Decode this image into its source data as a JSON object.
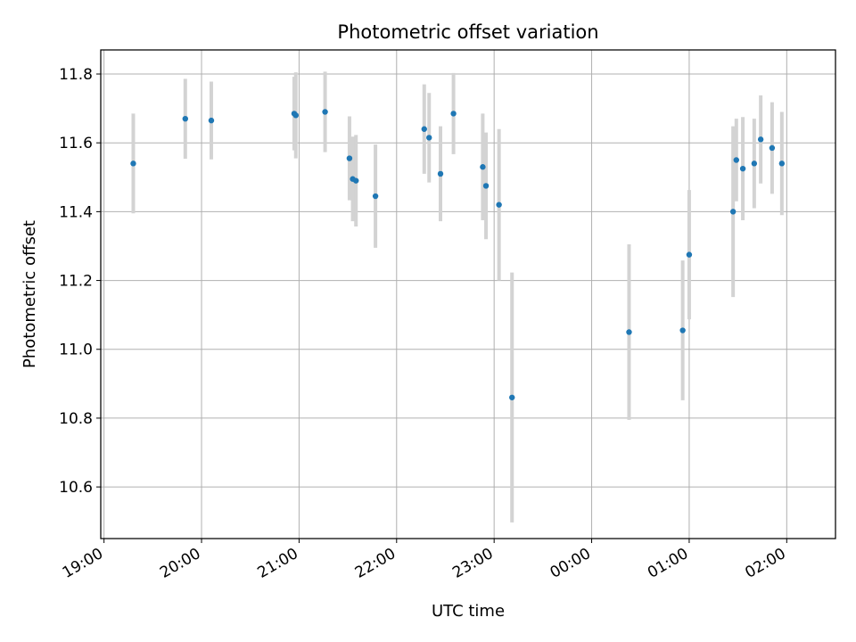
{
  "chart_data": {
    "type": "scatter",
    "title": "Photometric offset variation",
    "xlabel": "UTC time",
    "ylabel": "Photometric offset",
    "grid": true,
    "legend": "none",
    "xlim": [
      "18:58",
      "02:30"
    ],
    "ylim": [
      10.45,
      11.87
    ],
    "x_ticks": [
      "19:00",
      "20:00",
      "21:00",
      "22:00",
      "23:00",
      "00:00",
      "01:00",
      "02:00"
    ],
    "y_ticks": [
      "10.6",
      "10.8",
      "11.0",
      "11.2",
      "11.4",
      "11.6",
      "11.8"
    ],
    "colors": {
      "point": "#1f77b4",
      "errorbar": "#d3d3d3",
      "grid": "#b0b0b0"
    },
    "points": [
      {
        "t": "19:18",
        "y": 11.54,
        "err": 0.145
      },
      {
        "t": "19:50",
        "y": 11.67,
        "err": 0.116
      },
      {
        "t": "20:06",
        "y": 11.665,
        "err": 0.113
      },
      {
        "t": "20:57",
        "y": 11.685,
        "err": 0.107
      },
      {
        "t": "20:58",
        "y": 11.68,
        "err": 0.125
      },
      {
        "t": "21:16",
        "y": 11.69,
        "err": 0.117
      },
      {
        "t": "21:31",
        "y": 11.555,
        "err": 0.122
      },
      {
        "t": "21:33",
        "y": 11.495,
        "err": 0.123
      },
      {
        "t": "21:35",
        "y": 11.49,
        "err": 0.133
      },
      {
        "t": "21:47",
        "y": 11.445,
        "err": 0.15
      },
      {
        "t": "22:17",
        "y": 11.64,
        "err": 0.13
      },
      {
        "t": "22:20",
        "y": 11.615,
        "err": 0.13
      },
      {
        "t": "22:27",
        "y": 11.51,
        "err": 0.138
      },
      {
        "t": "22:35",
        "y": 11.685,
        "err": 0.118
      },
      {
        "t": "22:53",
        "y": 11.53,
        "err": 0.155
      },
      {
        "t": "22:55",
        "y": 11.475,
        "err": 0.155
      },
      {
        "t": "23:03",
        "y": 11.42,
        "err": 0.22
      },
      {
        "t": "23:11",
        "y": 10.86,
        "err": 0.363
      },
      {
        "t": "00:23",
        "y": 11.05,
        "err": 0.255
      },
      {
        "t": "00:56",
        "y": 11.055,
        "err": 0.203
      },
      {
        "t": "01:00",
        "y": 11.275,
        "err": 0.188
      },
      {
        "t": "01:27",
        "y": 11.4,
        "err": 0.248
      },
      {
        "t": "01:29",
        "y": 11.55,
        "err": 0.12
      },
      {
        "t": "01:33",
        "y": 11.525,
        "err": 0.15
      },
      {
        "t": "01:40",
        "y": 11.54,
        "err": 0.13
      },
      {
        "t": "01:44",
        "y": 11.61,
        "err": 0.128
      },
      {
        "t": "01:51",
        "y": 11.585,
        "err": 0.133
      },
      {
        "t": "01:57",
        "y": 11.54,
        "err": 0.15
      }
    ]
  }
}
